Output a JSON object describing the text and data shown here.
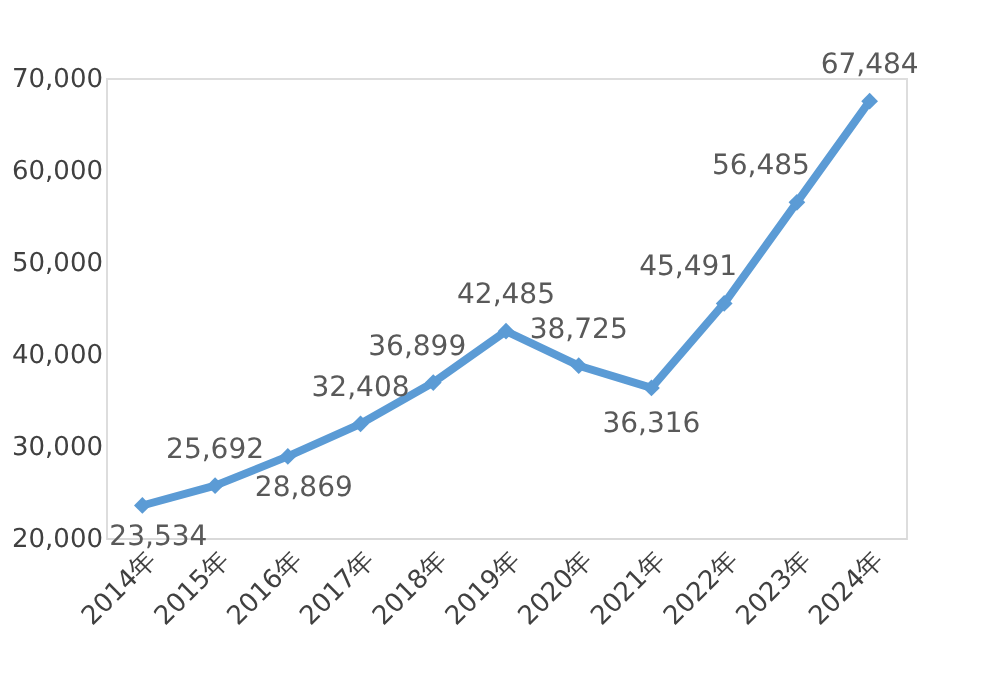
{
  "chart_data": {
    "type": "line",
    "categories": [
      "2014年",
      "2015年",
      "2016年",
      "2017年",
      "2018年",
      "2019年",
      "2020年",
      "2021年",
      "2022年",
      "2023年",
      "2024年"
    ],
    "series": [
      {
        "color": "#5b9bd5",
        "values": [
          23534,
          25692,
          28869,
          32408,
          36899,
          42485,
          38725,
          36316,
          45491,
          56485,
          67484
        ],
        "value_labels": [
          "23,534",
          "25,692",
          "28,869",
          "32,408",
          "36,899",
          "42,485",
          "38,725",
          "36,316",
          "45,491",
          "56,485",
          "67,484"
        ]
      }
    ],
    "ylim": [
      20000,
      70000
    ],
    "yticks": [
      {
        "value": 20000,
        "label": "20,000"
      },
      {
        "value": 30000,
        "label": "30,000"
      },
      {
        "value": 40000,
        "label": "40,000"
      },
      {
        "value": 50000,
        "label": "50,000"
      },
      {
        "value": 60000,
        "label": "60,000"
      },
      {
        "value": 70000,
        "label": "70,000"
      }
    ],
    "marker": "diamond",
    "line_style": "solid",
    "grid": false
  }
}
